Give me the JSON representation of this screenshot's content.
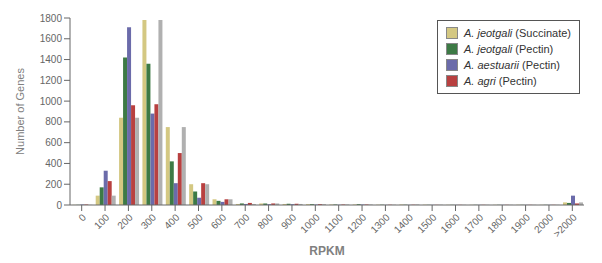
{
  "chart_data": {
    "type": "bar",
    "xlabel": "RPKM",
    "ylabel": "Number of Genes",
    "categories": [
      "0",
      "100",
      "200",
      "300",
      "400",
      "500",
      "600",
      "700",
      "800",
      "900",
      "1000",
      "1100",
      "1200",
      "1300",
      "1400",
      "1500",
      "1600",
      "1700",
      "1800",
      "1900",
      "2000",
      ">2000"
    ],
    "series": [
      {
        "name": "A. jeotgali (Succinate)",
        "color": "#d4c882",
        "values": [
          2,
          90,
          840,
          1780,
          750,
          200,
          55,
          10,
          15,
          10,
          8,
          5,
          5,
          3,
          5,
          3,
          2,
          2,
          2,
          2,
          2,
          25
        ]
      },
      {
        "name": "A. jeotgali (Pectin)",
        "color": "#3d7a45",
        "values": [
          2,
          170,
          1420,
          1360,
          420,
          130,
          40,
          15,
          15,
          12,
          8,
          5,
          8,
          3,
          3,
          2,
          2,
          2,
          2,
          2,
          2,
          20
        ]
      },
      {
        "name": "A. aestuarii (Pectin)",
        "color": "#6b6baa",
        "values": [
          5,
          330,
          1710,
          880,
          210,
          70,
          30,
          10,
          8,
          8,
          5,
          3,
          5,
          2,
          2,
          2,
          2,
          2,
          2,
          2,
          2,
          90
        ]
      },
      {
        "name": "A. agri (Pectin)",
        "color": "#b84040",
        "values": [
          5,
          230,
          960,
          970,
          500,
          210,
          55,
          20,
          15,
          12,
          8,
          5,
          5,
          3,
          3,
          2,
          2,
          2,
          2,
          2,
          2,
          15
        ]
      },
      {
        "color": "#b0b0b0",
        "values": [
          2,
          90,
          840,
          1780,
          750,
          200,
          55,
          10,
          15,
          10,
          8,
          5,
          5,
          3,
          5,
          3,
          2,
          2,
          2,
          2,
          2,
          25
        ]
      }
    ],
    "ylim": [
      0,
      1800
    ],
    "yticks": [
      0,
      200,
      400,
      600,
      800,
      1000,
      1200,
      1400,
      1600,
      1800
    ],
    "grid": false,
    "legend": "upper right"
  }
}
